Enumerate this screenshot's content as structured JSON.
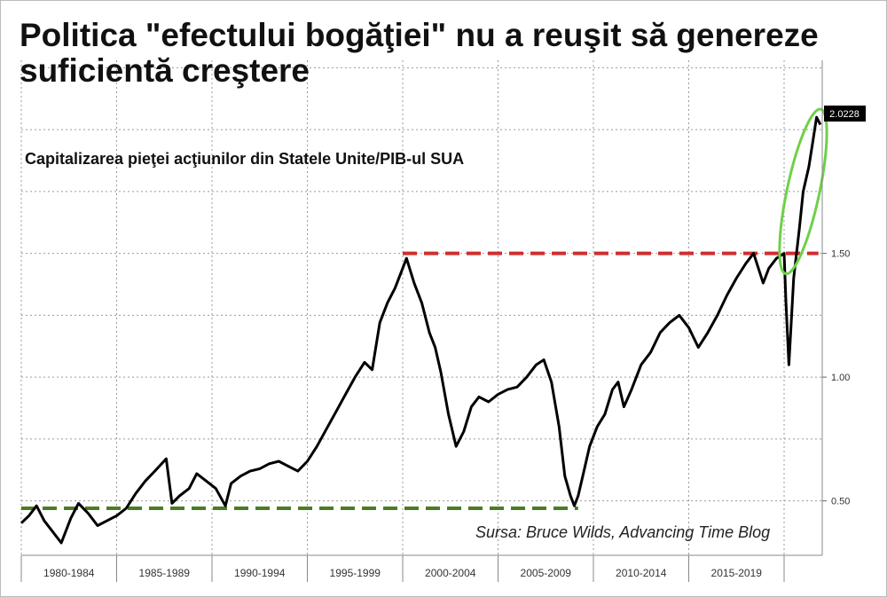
{
  "chart_data": {
    "type": "line",
    "title": "Politica \"efectului bogăţiei\" nu a reuşit să genereze",
    "title_line2": "suficientă creştere",
    "subtitle": "Capitalizarea pieţei acţiunilor din Statele Unite/PIB-ul SUA",
    "source": "Sursa: Bruce Wilds, Advancing Time Blog",
    "xlabel": "",
    "ylabel": "",
    "x_tick_labels": [
      "1980-1984",
      "1985-1989",
      "1990-1994",
      "1995-1999",
      "2000-2004",
      "2005-2009",
      "2010-2014",
      "2015-2019"
    ],
    "xlim": [
      1980,
      2022
    ],
    "y_tick_labels": [
      "0.50",
      "1.00",
      "1.50"
    ],
    "y_ticks": [
      0.5,
      1.0,
      1.5
    ],
    "ylim": [
      0.28,
      2.28
    ],
    "last_value_label": "2.0228",
    "grid": true,
    "series": [
      {
        "color": "#000000",
        "x": [
          1980.0,
          1980.4,
          1980.8,
          1981.2,
          1981.7,
          1982.1,
          1982.6,
          1983.0,
          1983.5,
          1984.0,
          1984.5,
          1985.0,
          1985.5,
          1986.0,
          1986.5,
          1987.0,
          1987.6,
          1987.9,
          1988.3,
          1988.8,
          1989.2,
          1989.7,
          1990.2,
          1990.7,
          1991.0,
          1991.5,
          1992.0,
          1992.5,
          1993.0,
          1993.5,
          1994.0,
          1994.5,
          1995.0,
          1995.5,
          1996.0,
          1996.5,
          1997.0,
          1997.5,
          1998.0,
          1998.4,
          1998.8,
          1999.2,
          1999.6,
          2000.0,
          2000.2,
          2000.6,
          2001.0,
          2001.4,
          2001.7,
          2002.0,
          2002.4,
          2002.8,
          2003.2,
          2003.6,
          2004.0,
          2004.5,
          2005.0,
          2005.5,
          2006.0,
          2006.5,
          2007.0,
          2007.4,
          2007.8,
          2008.2,
          2008.5,
          2008.8,
          2009.0,
          2009.2,
          2009.5,
          2009.8,
          2010.2,
          2010.6,
          2011.0,
          2011.3,
          2011.6,
          2012.0,
          2012.5,
          2013.0,
          2013.5,
          2014.0,
          2014.5,
          2015.0,
          2015.5,
          2016.0,
          2016.5,
          2017.0,
          2017.5,
          2018.0,
          2018.4,
          2018.9,
          2019.2,
          2019.6,
          2020.0,
          2020.1,
          2020.25,
          2020.5,
          2020.8,
          2021.0,
          2021.3,
          2021.5,
          2021.7,
          2021.9
        ],
        "values": [
          0.41,
          0.44,
          0.48,
          0.42,
          0.37,
          0.33,
          0.43,
          0.49,
          0.45,
          0.4,
          0.42,
          0.44,
          0.47,
          0.53,
          0.58,
          0.62,
          0.67,
          0.49,
          0.52,
          0.55,
          0.61,
          0.58,
          0.55,
          0.48,
          0.57,
          0.6,
          0.62,
          0.63,
          0.65,
          0.66,
          0.64,
          0.62,
          0.66,
          0.72,
          0.79,
          0.86,
          0.93,
          1.0,
          1.06,
          1.03,
          1.22,
          1.3,
          1.36,
          1.44,
          1.48,
          1.38,
          1.3,
          1.18,
          1.12,
          1.02,
          0.85,
          0.72,
          0.78,
          0.88,
          0.92,
          0.9,
          0.93,
          0.95,
          0.96,
          1.0,
          1.05,
          1.07,
          0.98,
          0.8,
          0.6,
          0.52,
          0.48,
          0.52,
          0.62,
          0.72,
          0.8,
          0.85,
          0.95,
          0.98,
          0.88,
          0.95,
          1.05,
          1.1,
          1.18,
          1.22,
          1.25,
          1.2,
          1.12,
          1.18,
          1.25,
          1.33,
          1.4,
          1.46,
          1.5,
          1.38,
          1.44,
          1.48,
          1.5,
          1.3,
          1.05,
          1.4,
          1.6,
          1.75,
          1.85,
          1.95,
          2.05,
          2.02
        ]
      }
    ],
    "reference_lines": [
      {
        "y": 1.5,
        "x_start": 2000.0,
        "x_end": 2021.8,
        "color": "#d12e2e",
        "style": "dashed"
      },
      {
        "y": 0.47,
        "x_start": 1980.0,
        "x_end": 2009.2,
        "color": "#4a7d26",
        "style": "dashed"
      }
    ],
    "highlight_ellipse": {
      "center_x": 2021.0,
      "center_y": 1.75,
      "rx_years": 0.85,
      "ry_value": 0.34,
      "color": "#6fd04a"
    }
  }
}
